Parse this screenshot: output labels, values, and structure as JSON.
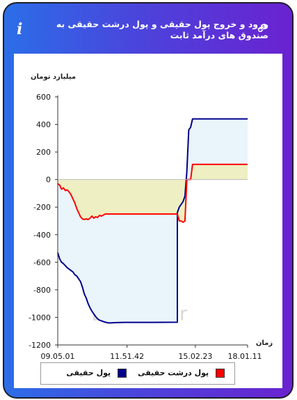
{
  "header": {
    "title": "ورود و خروج پول حقیقی و پول درشت حقیقی به صندوق های درآمد ثابت",
    "info_icon": "i"
  },
  "chart_data": {
    "type": "line",
    "ylabel": "میلیارد تومان",
    "xlabel": "زمان",
    "ylim": [
      -1200,
      600
    ],
    "yticks": [
      600,
      400,
      200,
      0,
      -200,
      -400,
      -600,
      -800,
      -1000,
      -1200
    ],
    "xtick_labels": [
      "09.05.01",
      "11.51.42",
      "15.02.23",
      "18.01.11"
    ],
    "watermark": "LiveTSE.ir",
    "series": [
      {
        "name": "پول حقیقی",
        "color": "#00008b",
        "fill": "#eaf4fb",
        "points": [
          [
            0,
            -530
          ],
          [
            1,
            -575
          ],
          [
            2,
            -600
          ],
          [
            3,
            -610
          ],
          [
            4,
            -625
          ],
          [
            5,
            -640
          ],
          [
            6,
            -650
          ],
          [
            7,
            -660
          ],
          [
            8,
            -670
          ],
          [
            9,
            -690
          ],
          [
            10,
            -700
          ],
          [
            11,
            -720
          ],
          [
            12,
            -740
          ],
          [
            13,
            -780
          ],
          [
            14,
            -830
          ],
          [
            15,
            -860
          ],
          [
            16,
            -900
          ],
          [
            17,
            -930
          ],
          [
            18,
            -955
          ],
          [
            19,
            -975
          ],
          [
            20,
            -995
          ],
          [
            21,
            -1010
          ],
          [
            22,
            -1020
          ],
          [
            23,
            -1025
          ],
          [
            24,
            -1030
          ],
          [
            25,
            -1035
          ],
          [
            26,
            -1038
          ],
          [
            27,
            -1040
          ],
          [
            28,
            -1040
          ],
          [
            30,
            -1038
          ],
          [
            35,
            -1036
          ],
          [
            40,
            -1036
          ],
          [
            50,
            -1036
          ],
          [
            63,
            -1035
          ],
          [
            63,
            -240
          ],
          [
            64,
            -200
          ],
          [
            65,
            -180
          ],
          [
            66,
            -160
          ],
          [
            67,
            -120
          ],
          [
            68,
            60
          ],
          [
            69,
            360
          ],
          [
            70,
            380
          ],
          [
            71,
            440
          ],
          [
            100,
            440
          ]
        ]
      },
      {
        "name": "پول درشت حقیقی",
        "color": "#ff0000",
        "fill": "#eeeebb",
        "points": [
          [
            0,
            -30
          ],
          [
            1,
            -40
          ],
          [
            2,
            -70
          ],
          [
            3,
            -60
          ],
          [
            4,
            -80
          ],
          [
            5,
            -75
          ],
          [
            6,
            -90
          ],
          [
            7,
            -110
          ],
          [
            8,
            -140
          ],
          [
            9,
            -170
          ],
          [
            10,
            -210
          ],
          [
            11,
            -240
          ],
          [
            12,
            -270
          ],
          [
            13,
            -285
          ],
          [
            14,
            -290
          ],
          [
            15,
            -285
          ],
          [
            16,
            -290
          ],
          [
            17,
            -280
          ],
          [
            18,
            -265
          ],
          [
            19,
            -280
          ],
          [
            20,
            -270
          ],
          [
            21,
            -275
          ],
          [
            22,
            -260
          ],
          [
            23,
            -265
          ],
          [
            24,
            -258
          ],
          [
            25,
            -250
          ],
          [
            26,
            -250
          ],
          [
            35,
            -250
          ],
          [
            45,
            -250
          ],
          [
            63,
            -250
          ],
          [
            64,
            -300
          ],
          [
            65,
            -300
          ],
          [
            66,
            -310
          ],
          [
            67,
            -300
          ],
          [
            68,
            0
          ],
          [
            69,
            0
          ],
          [
            70,
            0
          ],
          [
            71,
            110
          ],
          [
            100,
            110
          ]
        ]
      }
    ],
    "legend_position": "bottom"
  },
  "legend": {
    "items": [
      {
        "label": "پول حقیقی",
        "color": "#00008b"
      },
      {
        "label": "پول درشت حقیقی",
        "color": "#ff0000"
      }
    ]
  }
}
